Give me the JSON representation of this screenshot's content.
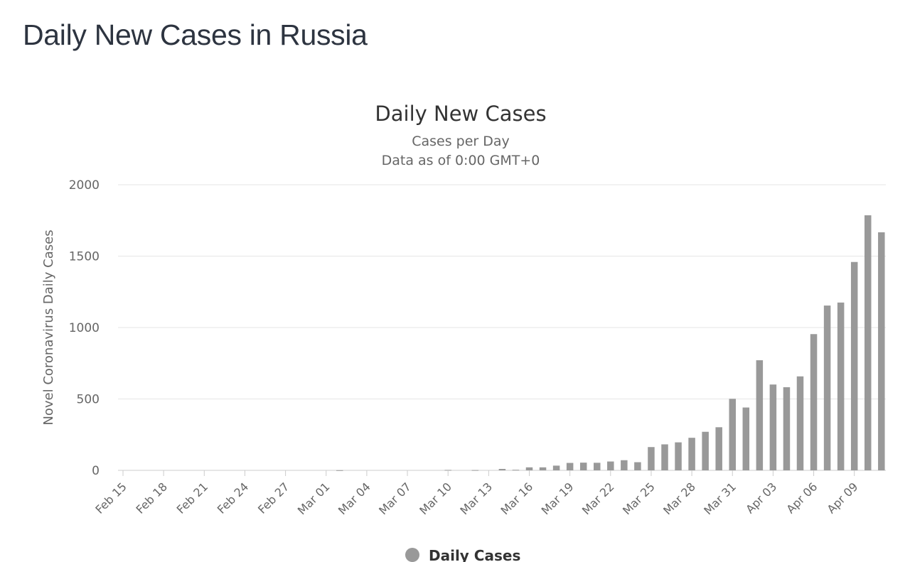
{
  "page": {
    "heading": "Daily New Cases in Russia"
  },
  "chart_data": {
    "type": "bar",
    "title": "Daily New Cases",
    "subtitle": [
      "Cases per Day",
      "Data as of 0:00 GMT+0"
    ],
    "ylabel": "Novel Coronavirus Daily Cases",
    "xlabel": "",
    "ylim": [
      0,
      2000
    ],
    "yticks": [
      0,
      500,
      1000,
      1500,
      2000
    ],
    "grid": true,
    "legend": {
      "position": "bottom",
      "label": "Daily Cases"
    },
    "color": "#999999",
    "categories": [
      "Feb 15",
      "Feb 16",
      "Feb 17",
      "Feb 18",
      "Feb 19",
      "Feb 20",
      "Feb 21",
      "Feb 22",
      "Feb 23",
      "Feb 24",
      "Feb 25",
      "Feb 26",
      "Feb 27",
      "Feb 28",
      "Feb 29",
      "Mar 01",
      "Mar 02",
      "Mar 03",
      "Mar 04",
      "Mar 05",
      "Mar 06",
      "Mar 07",
      "Mar 08",
      "Mar 09",
      "Mar 10",
      "Mar 11",
      "Mar 12",
      "Mar 13",
      "Mar 14",
      "Mar 15",
      "Mar 16",
      "Mar 17",
      "Mar 18",
      "Mar 19",
      "Mar 20",
      "Mar 21",
      "Mar 22",
      "Mar 23",
      "Mar 24",
      "Mar 25",
      "Mar 26",
      "Mar 27",
      "Mar 28",
      "Mar 29",
      "Mar 30",
      "Mar 31",
      "Apr 01",
      "Apr 02",
      "Apr 03",
      "Apr 04",
      "Apr 05",
      "Apr 06",
      "Apr 07",
      "Apr 08",
      "Apr 09",
      "Apr 10",
      "Apr 11"
    ],
    "x_tick_labels": [
      "Feb 15",
      "Feb 18",
      "Feb 21",
      "Feb 24",
      "Feb 27",
      "Mar 01",
      "Mar 04",
      "Mar 07",
      "Mar 10",
      "Mar 13",
      "Mar 16",
      "Mar 19",
      "Mar 22",
      "Mar 25",
      "Mar 28",
      "Mar 31",
      "Apr 03",
      "Apr 06",
      "Apr 09"
    ],
    "series": [
      {
        "name": "Daily Cases",
        "values": [
          0,
          0,
          0,
          0,
          0,
          0,
          0,
          0,
          0,
          0,
          0,
          0,
          0,
          0,
          0,
          0,
          1,
          0,
          0,
          0,
          0,
          0,
          0,
          0,
          3,
          0,
          2,
          0,
          10,
          4,
          21,
          21,
          33,
          52,
          54,
          53,
          62,
          71,
          57,
          163,
          182,
          196,
          228,
          270,
          302,
          501,
          440,
          771,
          601,
          582,
          658,
          954,
          1154,
          1175,
          1459,
          1786,
          1667
        ]
      }
    ]
  }
}
